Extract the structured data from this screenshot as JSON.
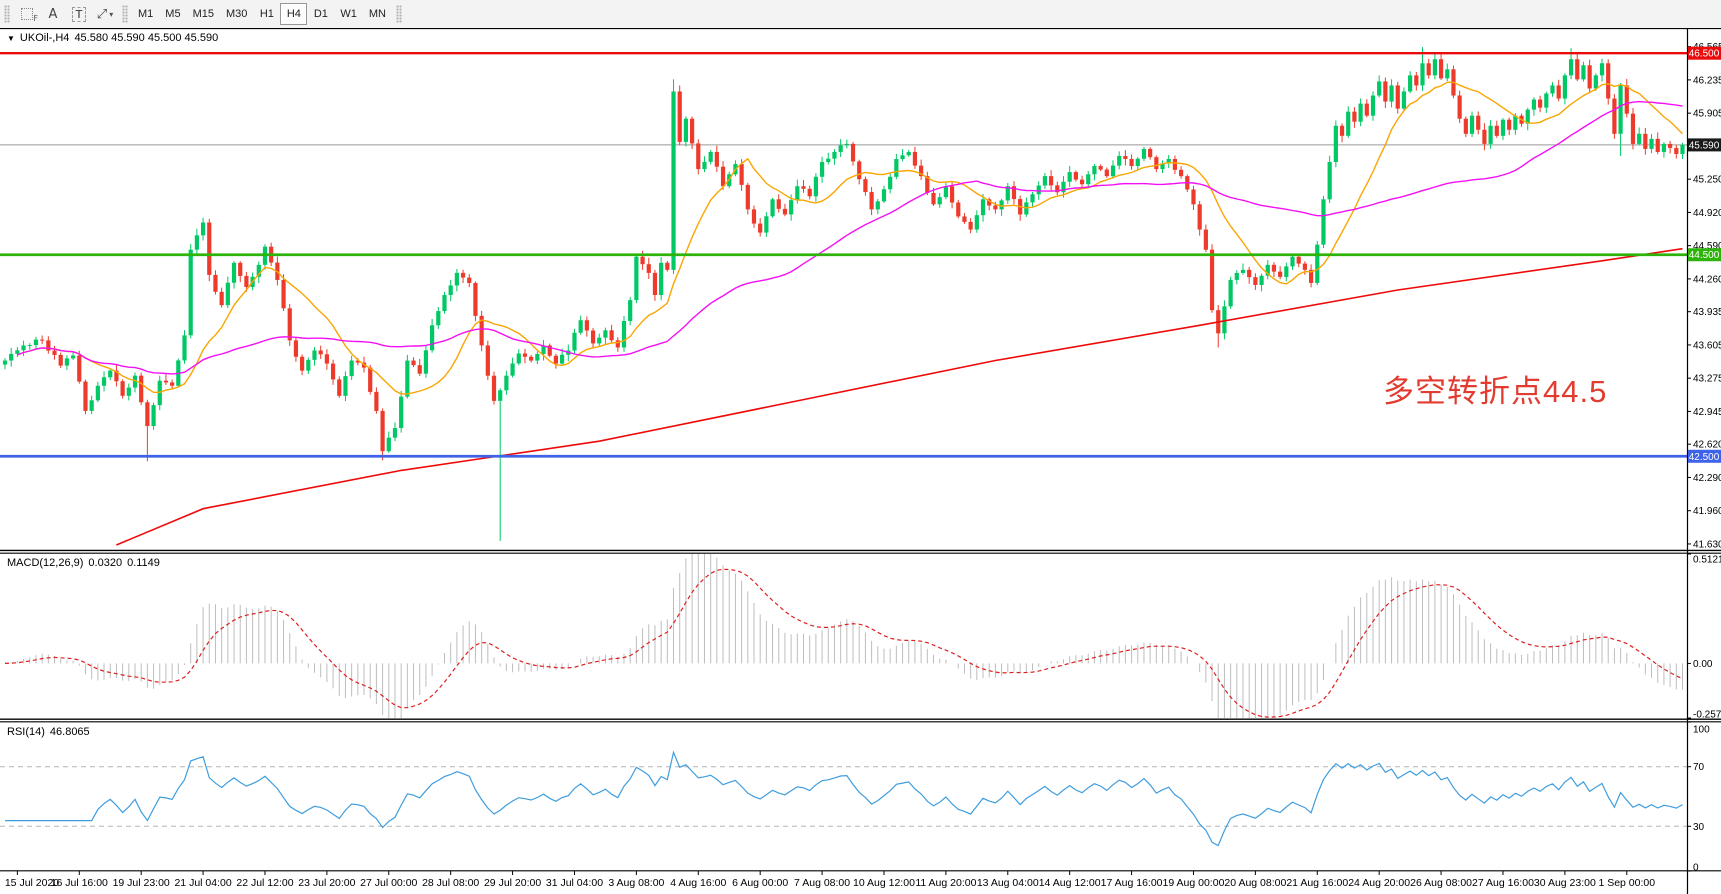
{
  "toolbar": {
    "timeframes": [
      "M1",
      "M5",
      "M15",
      "M30",
      "H1",
      "H4",
      "D1",
      "W1",
      "MN"
    ],
    "active_timeframe": "H4"
  },
  "icons": {
    "dropdown": "▼",
    "caret": "▾",
    "sync": "⤢",
    "letter_a": "A",
    "letter_t": "T",
    "grid_f": "F"
  },
  "chart": {
    "symbol_title": "UKOil-,H4",
    "ohlc_text": "45.580 45.590 45.500 45.590",
    "annotation": {
      "text": "多空转折点44.5",
      "color": "#e23b2f"
    },
    "colors": {
      "bull": "#00c864",
      "bear": "#ed3a2b",
      "hline_red": "#ea0c0c",
      "hline_green": "#2db30a",
      "hline_blue": "#3e62e8",
      "current_line": "#999999",
      "badge_black": "#1a1a1a",
      "ma_fast": "#f9a602",
      "ma_medium": "#f410f4",
      "ma_slow": "#f00909",
      "macd_hist": "#bdbdbd",
      "macd_signal": "#dd2020",
      "rsi_line": "#3f9dde",
      "level_dash": "#b5b5b5"
    }
  },
  "chart_data": [
    {
      "type": "candlestick",
      "symbol": "UKOil-",
      "timeframe": "H4",
      "current_quote": {
        "open": "45.580",
        "high": "45.590",
        "low": "45.500",
        "close": "45.590"
      },
      "n_bars": 272,
      "y_range": {
        "max": 46.75,
        "min": 41.57
      },
      "y_ticks": [
        46.565,
        46.235,
        45.905,
        45.575,
        45.25,
        44.92,
        44.59,
        44.26,
        43.935,
        43.605,
        43.275,
        42.945,
        42.62,
        42.29,
        41.96,
        41.63
      ],
      "hlines": [
        {
          "price": 46.5,
          "badge": "46.500",
          "color_key": "hline_red",
          "width": 2.4
        },
        {
          "price": 44.5,
          "badge": "44.500",
          "color_key": "hline_green",
          "width": 2.8
        },
        {
          "price": 42.5,
          "badge": "42.500",
          "color_key": "hline_blue",
          "width": 2.8
        }
      ],
      "current_price": {
        "price": 45.59,
        "badge": "45.590"
      },
      "x_label_first_bar": 2,
      "x_label_every": 10,
      "x_labels": [
        "15 Jul 2020",
        "16 Jul 16:00",
        "19 Jul 23:00",
        "21 Jul 04:00",
        "22 Jul 12:00",
        "23 Jul 20:00",
        "27 Jul 00:00",
        "28 Jul 08:00",
        "29 Jul 20:00",
        "31 Jul 04:00",
        "3 Aug 08:00",
        "4 Aug 16:00",
        "6 Aug 00:00",
        "7 Aug 08:00",
        "10 Aug 12:00",
        "11 Aug 20:00",
        "13 Aug 04:00",
        "14 Aug 12:00",
        "17 Aug 16:00",
        "19 Aug 00:00",
        "20 Aug 08:00",
        "21 Aug 16:00",
        "24 Aug 20:00",
        "26 Aug 08:00",
        "27 Aug 16:00",
        "30 Aug 23:00",
        "1 Sep 00:00"
      ],
      "close_anchors": [
        [
          0,
          43.45
        ],
        [
          3,
          43.6
        ],
        [
          6,
          43.65
        ],
        [
          9,
          43.4
        ],
        [
          11,
          43.5
        ],
        [
          13,
          42.95
        ],
        [
          15,
          43.2
        ],
        [
          17,
          43.35
        ],
        [
          19,
          43.1
        ],
        [
          21,
          43.3
        ],
        [
          23,
          42.8
        ],
        [
          25,
          43.25
        ],
        [
          27,
          43.2
        ],
        [
          29,
          43.7
        ],
        [
          30,
          44.55
        ],
        [
          32,
          44.82
        ],
        [
          33,
          44.3
        ],
        [
          35,
          44.0
        ],
        [
          37,
          44.42
        ],
        [
          39,
          44.18
        ],
        [
          41,
          44.4
        ],
        [
          42,
          44.58
        ],
        [
          44,
          44.25
        ],
        [
          46,
          43.65
        ],
        [
          48,
          43.35
        ],
        [
          50,
          43.55
        ],
        [
          52,
          43.42
        ],
        [
          54,
          43.1
        ],
        [
          56,
          43.45
        ],
        [
          58,
          43.38
        ],
        [
          60,
          42.95
        ],
        [
          61,
          42.55
        ],
        [
          63,
          42.78
        ],
        [
          65,
          43.45
        ],
        [
          67,
          43.32
        ],
        [
          69,
          43.8
        ],
        [
          71,
          44.1
        ],
        [
          73,
          44.32
        ],
        [
          75,
          44.22
        ],
        [
          77,
          43.6
        ],
        [
          79,
          43.05
        ],
        [
          81,
          43.3
        ],
        [
          83,
          43.52
        ],
        [
          85,
          43.45
        ],
        [
          87,
          43.6
        ],
        [
          89,
          43.42
        ],
        [
          91,
          43.55
        ],
        [
          93,
          43.85
        ],
        [
          95,
          43.62
        ],
        [
          97,
          43.75
        ],
        [
          99,
          43.58
        ],
        [
          101,
          44.05
        ],
        [
          102,
          44.48
        ],
        [
          104,
          44.32
        ],
        [
          105,
          44.1
        ],
        [
          106,
          44.42
        ],
        [
          107,
          44.35
        ],
        [
          108,
          46.12
        ],
        [
          109,
          45.62
        ],
        [
          110,
          45.85
        ],
        [
          112,
          45.35
        ],
        [
          114,
          45.52
        ],
        [
          116,
          45.18
        ],
        [
          118,
          45.4
        ],
        [
          120,
          44.95
        ],
        [
          122,
          44.72
        ],
        [
          124,
          45.05
        ],
        [
          126,
          44.9
        ],
        [
          128,
          45.18
        ],
        [
          130,
          45.08
        ],
        [
          132,
          45.42
        ],
        [
          134,
          45.52
        ],
        [
          136,
          45.6
        ],
        [
          138,
          45.25
        ],
        [
          140,
          44.95
        ],
        [
          142,
          45.15
        ],
        [
          144,
          45.45
        ],
        [
          146,
          45.52
        ],
        [
          148,
          45.28
        ],
        [
          150,
          45.0
        ],
        [
          152,
          45.18
        ],
        [
          154,
          44.88
        ],
        [
          156,
          44.75
        ],
        [
          158,
          45.05
        ],
        [
          160,
          44.95
        ],
        [
          162,
          45.18
        ],
        [
          164,
          44.9
        ],
        [
          166,
          45.1
        ],
        [
          168,
          45.28
        ],
        [
          170,
          45.12
        ],
        [
          172,
          45.32
        ],
        [
          174,
          45.2
        ],
        [
          176,
          45.38
        ],
        [
          178,
          45.28
        ],
        [
          180,
          45.48
        ],
        [
          182,
          45.38
        ],
        [
          184,
          45.55
        ],
        [
          186,
          45.35
        ],
        [
          188,
          45.45
        ],
        [
          190,
          45.28
        ],
        [
          192,
          45.0
        ],
        [
          193,
          44.75
        ],
        [
          194,
          44.55
        ],
        [
          195,
          43.95
        ],
        [
          196,
          43.72
        ],
        [
          198,
          44.25
        ],
        [
          200,
          44.35
        ],
        [
          202,
          44.2
        ],
        [
          204,
          44.4
        ],
        [
          206,
          44.28
        ],
        [
          208,
          44.48
        ],
        [
          210,
          44.35
        ],
        [
          211,
          44.22
        ],
        [
          212,
          44.6
        ],
        [
          213,
          45.05
        ],
        [
          214,
          45.42
        ],
        [
          215,
          45.78
        ],
        [
          216,
          45.68
        ],
        [
          217,
          45.92
        ],
        [
          218,
          45.82
        ],
        [
          219,
          46.0
        ],
        [
          220,
          45.88
        ],
        [
          221,
          46.08
        ],
        [
          222,
          46.22
        ],
        [
          223,
          46.02
        ],
        [
          224,
          46.18
        ],
        [
          225,
          45.95
        ],
        [
          226,
          46.12
        ],
        [
          227,
          46.28
        ],
        [
          228,
          46.18
        ],
        [
          229,
          46.4
        ],
        [
          230,
          46.28
        ],
        [
          231,
          46.44
        ],
        [
          232,
          46.25
        ],
        [
          233,
          46.34
        ],
        [
          234,
          46.08
        ],
        [
          235,
          45.85
        ],
        [
          236,
          45.7
        ],
        [
          237,
          45.88
        ],
        [
          238,
          45.74
        ],
        [
          239,
          45.6
        ],
        [
          240,
          45.78
        ],
        [
          241,
          45.68
        ],
        [
          242,
          45.84
        ],
        [
          243,
          45.74
        ],
        [
          244,
          45.88
        ],
        [
          245,
          45.8
        ],
        [
          246,
          45.94
        ],
        [
          247,
          46.04
        ],
        [
          248,
          45.96
        ],
        [
          249,
          46.1
        ],
        [
          250,
          46.18
        ],
        [
          251,
          46.05
        ],
        [
          252,
          46.28
        ],
        [
          253,
          46.44
        ],
        [
          254,
          46.24
        ],
        [
          255,
          46.38
        ],
        [
          256,
          46.15
        ],
        [
          257,
          46.28
        ],
        [
          258,
          46.4
        ],
        [
          259,
          46.05
        ],
        [
          260,
          45.7
        ],
        [
          261,
          46.18
        ],
        [
          262,
          45.9
        ],
        [
          263,
          45.6
        ],
        [
          264,
          45.7
        ],
        [
          265,
          45.55
        ],
        [
          266,
          45.65
        ],
        [
          267,
          45.52
        ],
        [
          268,
          45.6
        ],
        [
          269,
          45.56
        ],
        [
          270,
          45.5
        ],
        [
          271,
          45.59
        ]
      ],
      "spikes": [
        {
          "i": 23,
          "low": 42.45
        },
        {
          "i": 61,
          "low": 42.46
        },
        {
          "i": 80,
          "low": 41.66
        },
        {
          "i": 108,
          "high": 46.24
        },
        {
          "i": 196,
          "low": 43.58
        },
        {
          "i": 229,
          "high": 46.56
        },
        {
          "i": 253,
          "high": 46.55
        },
        {
          "i": 261,
          "low": 45.48
        }
      ],
      "moving_averages": [
        {
          "name": "fast-ma",
          "color_key": "ma_fast",
          "period": 13
        },
        {
          "name": "medium-ma",
          "color_key": "ma_medium",
          "period": 50
        },
        {
          "name": "slow-ma",
          "color_key": "ma_slow",
          "anchors": [
            [
              18,
              41.62
            ],
            [
              32,
              41.98
            ],
            [
              64,
              42.36
            ],
            [
              96,
              42.65
            ],
            [
              128,
              43.05
            ],
            [
              160,
              43.45
            ],
            [
              193,
              43.8
            ],
            [
              225,
              44.15
            ],
            [
              258,
              44.44
            ],
            [
              271,
              44.56
            ]
          ]
        }
      ]
    },
    {
      "type": "macd",
      "label": "MACD(12,26,9)",
      "macd_value": "0.0320",
      "signal_value": "0.1149",
      "params": [
        12,
        26,
        9
      ],
      "y_range": {
        "max": 0.5121,
        "min": -0.2578
      },
      "y_ticks": [
        {
          "v": 0.5121,
          "t": "0.5121"
        },
        {
          "v": 0,
          "t": "0.00"
        },
        {
          "v": -0.2578,
          "t": "-0.2578"
        }
      ]
    },
    {
      "type": "rsi",
      "label": "RSI(14)",
      "value_text": "46.8065",
      "period": 14,
      "levels": [
        70,
        30
      ],
      "y_range": {
        "max": 100,
        "min": 0
      },
      "y_ticks": [
        {
          "v": 100,
          "t": "100"
        },
        {
          "v": 70,
          "t": "70"
        },
        {
          "v": 30,
          "t": "30"
        },
        {
          "v": 0,
          "t": "0"
        }
      ]
    }
  ]
}
